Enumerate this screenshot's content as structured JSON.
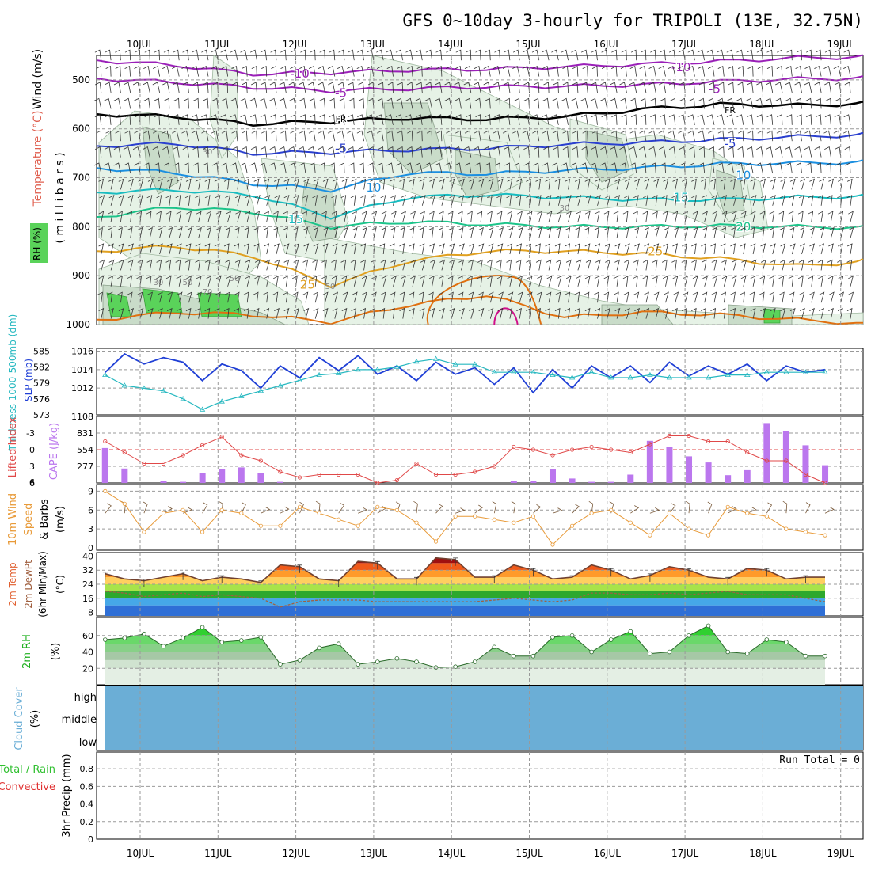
{
  "title": "GFS 0~10day 3-hourly for TRIPOLI (13E, 32.75N)",
  "dates": [
    "10JUL",
    "11JUL",
    "12JUL",
    "13JUL",
    "14JUL",
    "15JUL",
    "16JUL",
    "17JUL",
    "18JUL",
    "19JUL"
  ],
  "colors": {
    "rh_fill_light": "#e6f2e6",
    "rh_fill_mid": "#c9dcc9",
    "rh_fill_dark": "#a9bba9",
    "rh_green": "#5ad35a",
    "temp_purple": "#9a1fb8",
    "temp_blue_dark": "#2a3fcf",
    "temp_blue": "#1b8fe0",
    "temp_cyan": "#19bcc0",
    "temp_green": "#1cc48a",
    "temp_orange": "#e0a020",
    "temp_darkorange": "#e07010",
    "temp_magenta": "#d0108a",
    "slp_blue": "#1f3fd6",
    "thick_cyan": "#26b8c0",
    "lifted_red": "#e04848",
    "cape_violet": "#bb77ee",
    "wind10_orange": "#e89a38",
    "barb_brown": "#7a5a3a",
    "t2m_dark": "#704030",
    "dewpt_brown": "#a06040",
    "rh2m_line": "#2a6a2a",
    "cloud_blue": "#6baed6"
  },
  "panels": {
    "upper": {
      "ylabel_wind": "Wind (m/s)",
      "ylabel_temp": "Temperature (°C)",
      "ylabel_rh": "RH (%)",
      "ylabel_mb": "( m i l l i b a r s )",
      "levels": [
        "500",
        "600",
        "700",
        "800",
        "900",
        "1000"
      ],
      "contour_labels": [
        {
          "text": "-10",
          "level": 487,
          "day": 2.05,
          "color": "temp_purple"
        },
        {
          "text": "-10",
          "level": 474,
          "day": 6.95,
          "color": "temp_purple"
        },
        {
          "text": "-5",
          "level": 527,
          "day": 2.58,
          "color": "temp_purple"
        },
        {
          "text": "-5",
          "level": 519,
          "day": 7.38,
          "color": "temp_purple"
        },
        {
          "text": "FR",
          "level": 578,
          "day": 2.58,
          "color": "black"
        },
        {
          "text": "FR",
          "level": 560,
          "day": 7.58,
          "color": "black"
        },
        {
          "text": "-5",
          "level": 640,
          "day": 2.58,
          "color": "temp_blue_dark"
        },
        {
          "text": "-5",
          "level": 630,
          "day": 7.58,
          "color": "temp_blue_dark"
        },
        {
          "text": "10",
          "level": 720,
          "day": 3.0,
          "color": "temp_blue"
        },
        {
          "text": "10",
          "level": 695,
          "day": 7.75,
          "color": "temp_blue"
        },
        {
          "text": "15",
          "level": 785,
          "day": 2.0,
          "color": "temp_cyan"
        },
        {
          "text": "15",
          "level": 740,
          "day": 6.95,
          "color": "temp_cyan"
        },
        {
          "text": "20",
          "level": 800,
          "day": 7.75,
          "color": "temp_green"
        },
        {
          "text": "25",
          "level": 918,
          "day": 2.15,
          "color": "temp_orange"
        },
        {
          "text": "25",
          "level": 850,
          "day": 6.62,
          "color": "temp_orange"
        }
      ],
      "rh_labels": [
        "30",
        "30",
        "50",
        "50",
        "70",
        "50",
        "30"
      ]
    },
    "slp": {
      "ylabel_thick": "Thickness 1000-500mb (dm)",
      "ylabel_slp": "SLP (mb)",
      "thick_ticks": [
        "585",
        "582",
        "579",
        "576",
        "573"
      ],
      "slp_ticks": [
        "1016",
        "1014",
        "1012",
        "1108"
      ]
    },
    "cape": {
      "ylabel_li": "Lifted Index",
      "ylabel_cape": "CAPE (J/kg)",
      "li_ticks": [
        "-3",
        "0",
        "3",
        "6"
      ],
      "cape_ticks": [
        "831",
        "554",
        "277"
      ],
      "extra_tick": "6"
    },
    "wind10": {
      "ylabel": "10m Wind Speed & Barbs (m/s)",
      "ylabel_1": "10m Wind",
      "ylabel_2": "Speed",
      "ylabel_3": "& Barbs",
      "ylabel_units": "(m/s)",
      "ticks": [
        "9",
        "6",
        "3",
        "0"
      ]
    },
    "t2m": {
      "ylabel_1": "2m Temp",
      "ylabel_2": "2m DewPt",
      "ylabel_3": "(6hr Min/Max)",
      "ylabel_units": "(°C)",
      "ticks": [
        "40",
        "32",
        "24",
        "16",
        "8"
      ]
    },
    "rh2m": {
      "ylabel": "2m RH",
      "ylabel_units": "(%)",
      "ticks": [
        "60",
        "40",
        "20"
      ]
    },
    "cloud": {
      "ylabel": "Cloud Cover",
      "ylabel_units": "(%)",
      "rows": [
        "high",
        "middle",
        "low"
      ]
    },
    "precip": {
      "ylabel_1": "Total / Rain",
      "ylabel_2": "Convective",
      "ylabel_3": "3hr Precip (mm)",
      "ticks": [
        "0.8",
        "0.6",
        "0.4",
        "0.2",
        "0"
      ],
      "run_total": "Run Total = 0"
    }
  },
  "chart_data": [
    {
      "type": "line",
      "title": "",
      "xlabel": "",
      "ylabel": "SLP (mb)",
      "x": [
        0,
        0.25,
        0.5,
        0.75,
        1,
        1.25,
        1.5,
        1.75,
        2,
        2.25,
        2.5,
        2.75,
        3,
        3.25,
        3.5,
        3.75,
        4,
        4.25,
        4.5,
        4.75,
        5,
        5.25,
        5.5,
        5.75,
        6,
        6.25,
        6.5,
        6.75,
        7,
        7.25,
        7.5,
        7.75,
        8,
        8.25,
        8.5,
        8.75,
        9,
        9.25
      ],
      "series": [
        {
          "name": "SLP",
          "values": [
            1013.7,
            1015.7,
            1014.6,
            1015.3,
            1014.8,
            1012.8,
            1014.6,
            1013.9,
            1012.0,
            1014.4,
            1013.1,
            1015.3,
            1013.9,
            1015.5,
            1013.5,
            1014.4,
            1012.8,
            1014.8,
            1013.5,
            1014.2,
            1012.4,
            1014.2,
            1011.5,
            1014.0,
            1012.0,
            1014.4,
            1013.1,
            1014.4,
            1012.6,
            1014.8,
            1013.3,
            1014.4,
            1013.5,
            1014.6,
            1012.8,
            1014.4,
            1013.7,
            1014.0
          ]
        },
        {
          "name": "Thickness",
          "values": [
            580.5,
            578.5,
            578.0,
            577.5,
            576.0,
            574.0,
            575.5,
            576.5,
            577.5,
            578.5,
            579.5,
            580.5,
            580.8,
            581.5,
            581.5,
            582.0,
            583.0,
            583.5,
            582.5,
            582.5,
            581.0,
            581.0,
            581.0,
            580.5,
            580.0,
            581.0,
            580.0,
            580.0,
            580.5,
            580.0,
            580.0,
            580.0,
            580.5,
            580.5,
            581.0,
            581.0,
            581.0,
            581.0
          ]
        }
      ]
    },
    {
      "type": "bar",
      "title": "",
      "ylabel": "CAPE (J/kg)",
      "x": [
        0,
        0.25,
        0.5,
        0.75,
        1,
        1.25,
        1.5,
        1.75,
        2,
        2.25,
        2.5,
        2.75,
        3,
        3.25,
        3.5,
        3.75,
        4,
        4.25,
        4.5,
        4.75,
        5,
        5.25,
        5.5,
        5.75,
        6,
        6.25,
        6.5,
        6.75,
        7,
        7.25,
        7.5,
        7.75,
        8,
        8.25,
        8.5,
        8.75,
        9,
        9.25
      ],
      "series": [
        {
          "name": "CAPE",
          "values": [
            630,
            260,
            0,
            30,
            20,
            180,
            250,
            280,
            180,
            20,
            0,
            0,
            0,
            0,
            0,
            0,
            0,
            0,
            0,
            0,
            0,
            30,
            40,
            250,
            80,
            20,
            20,
            150,
            760,
            650,
            480,
            370,
            140,
            230,
            1080,
            930,
            680,
            320
          ]
        },
        {
          "name": "Lifted Index",
          "values": [
            -1.5,
            0.5,
            2.5,
            2.5,
            1.0,
            -0.8,
            -2.3,
            1.0,
            2.0,
            4.0,
            5.0,
            4.5,
            4.5,
            4.5,
            6.0,
            5.5,
            2.5,
            4.5,
            4.5,
            4.0,
            3.0,
            -0.5,
            0.0,
            1.0,
            0.0,
            -0.5,
            0.0,
            0.5,
            -1.0,
            -2.5,
            -2.5,
            -1.5,
            -1.5,
            0.5,
            2.0,
            2.0,
            4.5,
            6.0
          ]
        }
      ]
    },
    {
      "type": "line",
      "title": "",
      "ylabel": "10m Wind Speed (m/s)",
      "x": [
        0,
        0.25,
        0.5,
        0.75,
        1,
        1.25,
        1.5,
        1.75,
        2,
        2.25,
        2.5,
        2.75,
        3,
        3.25,
        3.5,
        3.75,
        4,
        4.25,
        4.5,
        4.75,
        5,
        5.25,
        5.5,
        5.75,
        6,
        6.25,
        6.5,
        6.75,
        7,
        7.25,
        7.5,
        7.75,
        8,
        8.25,
        8.5,
        8.75,
        9,
        9.25
      ],
      "series": [
        {
          "name": "Wind Speed",
          "values": [
            9.0,
            7.0,
            2.5,
            5.5,
            6.0,
            2.5,
            6.0,
            5.5,
            3.5,
            3.5,
            6.5,
            5.5,
            4.5,
            3.5,
            6.5,
            6.0,
            4.0,
            1.0,
            5.0,
            5.0,
            4.5,
            4.0,
            5.0,
            0.5,
            3.5,
            5.5,
            6.0,
            4.0,
            2.0,
            5.5,
            3.0,
            2.0,
            6.5,
            5.5,
            5.0,
            3.0,
            2.5,
            2.0
          ]
        }
      ]
    },
    {
      "type": "area",
      "title": "",
      "ylabel": "2m Temp (°C)",
      "x": [
        0,
        0.25,
        0.5,
        0.75,
        1,
        1.25,
        1.5,
        1.75,
        2,
        2.25,
        2.5,
        2.75,
        3,
        3.25,
        3.5,
        3.75,
        4,
        4.25,
        4.5,
        4.75,
        5,
        5.25,
        5.5,
        5.75,
        6,
        6.25,
        6.5,
        6.75,
        7,
        7.25,
        7.5,
        7.75,
        8,
        8.25,
        8.5,
        8.75,
        9,
        9.25
      ],
      "series": [
        {
          "name": "2m Temp",
          "values": [
            30,
            27,
            26,
            28,
            30,
            26,
            28,
            27,
            25,
            35,
            34,
            27,
            26,
            37,
            36,
            27,
            27,
            39,
            38,
            28,
            28,
            35,
            32,
            27,
            28,
            35,
            32,
            27,
            29,
            34,
            32,
            28,
            27,
            33,
            32,
            27,
            28,
            28
          ]
        },
        {
          "name": "2m DewPt",
          "values": [
            20,
            19,
            17,
            18,
            19,
            17,
            18,
            17,
            16,
            11,
            14,
            15,
            15,
            15,
            14,
            14,
            14,
            14,
            14,
            14,
            15,
            16,
            15,
            14,
            15,
            19,
            19,
            18,
            18,
            19,
            18,
            19,
            20,
            18,
            18,
            18,
            16,
            14
          ]
        }
      ]
    },
    {
      "type": "area",
      "title": "",
      "ylabel": "2m RH (%)",
      "x": [
        0,
        0.25,
        0.5,
        0.75,
        1,
        1.25,
        1.5,
        1.75,
        2,
        2.25,
        2.5,
        2.75,
        3,
        3.25,
        3.5,
        3.75,
        4,
        4.25,
        4.5,
        4.75,
        5,
        5.25,
        5.5,
        5.75,
        6,
        6.25,
        6.5,
        6.75,
        7,
        7.25,
        7.5,
        7.75,
        8,
        8.25,
        8.5,
        8.75,
        9,
        9.25
      ],
      "series": [
        {
          "name": "2m RH",
          "values": [
            55,
            57,
            62,
            47,
            57,
            70,
            52,
            54,
            58,
            25,
            30,
            45,
            50,
            25,
            28,
            32,
            28,
            21,
            22,
            28,
            46,
            35,
            35,
            58,
            60,
            40,
            55,
            65,
            38,
            40,
            60,
            72,
            40,
            38,
            55,
            52,
            35,
            35
          ]
        }
      ]
    }
  ]
}
